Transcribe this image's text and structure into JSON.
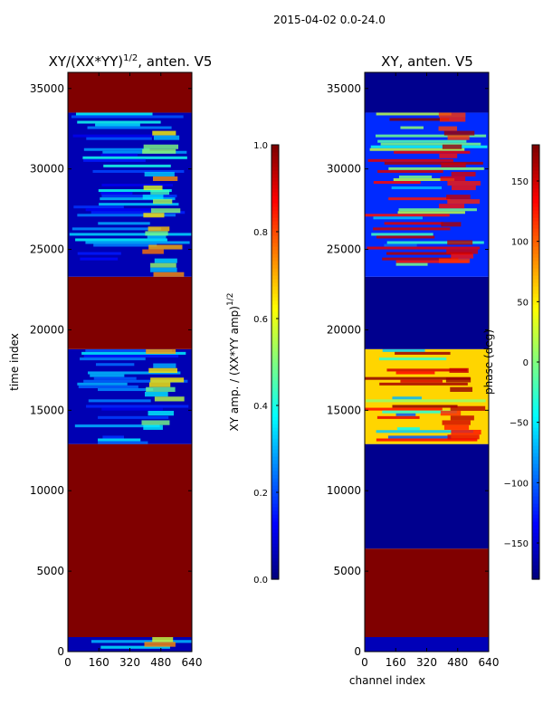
{
  "figure": {
    "suptitle": "2015-04-02 0.0-24.0"
  },
  "chart_data": [
    {
      "type": "heatmap",
      "title": "XY/(XX*YY)^1/2, anten. V5",
      "title_main": "XY/(XX*YY)",
      "title_sup": "1/2",
      "title_tail": ", anten. V5",
      "xlabel": "",
      "ylabel": "time index",
      "xlim": [
        0,
        640
      ],
      "ylim": [
        0,
        36000
      ],
      "xticks": [
        0,
        160,
        320,
        480,
        640
      ],
      "yticks": [
        0,
        5000,
        10000,
        15000,
        20000,
        25000,
        30000,
        35000
      ],
      "colorbar": {
        "label": "XY amp. / (XX*YY amp)^1/2",
        "label_main": "XY amp. / (XX*YY amp)",
        "label_sup": "1/2",
        "min": 0.0,
        "max": 1.0,
        "ticks": [
          "0.0",
          "0.2",
          "0.4",
          "0.6",
          "0.8",
          "1.0"
        ]
      },
      "regions": [
        {
          "y0": 0,
          "y1": 900,
          "x0": 0,
          "x1": 640,
          "value": 0.05
        },
        {
          "y0": 900,
          "y1": 12900,
          "x0": 0,
          "x1": 640,
          "value": 1.0
        },
        {
          "y0": 12900,
          "y1": 18800,
          "x0": 0,
          "x1": 640,
          "value": 0.05
        },
        {
          "y0": 18800,
          "y1": 23300,
          "x0": 0,
          "x1": 640,
          "value": 1.0
        },
        {
          "y0": 23300,
          "y1": 33500,
          "x0": 0,
          "x1": 640,
          "value": 0.05
        },
        {
          "y0": 33500,
          "y1": 36000,
          "x0": 0,
          "x1": 640,
          "value": 1.0
        }
      ]
    },
    {
      "type": "heatmap",
      "title": "XY, anten. V5",
      "xlabel": "channel index",
      "ylabel": "",
      "xlim": [
        0,
        640
      ],
      "ylim": [
        0,
        36000
      ],
      "xticks": [
        0,
        160,
        320,
        480,
        640
      ],
      "yticks": [
        0,
        5000,
        10000,
        15000,
        20000,
        25000,
        30000,
        35000
      ],
      "colorbar": {
        "label": "phase (deg)",
        "min": -180,
        "max": 180,
        "ticks": [
          "−150",
          "−100",
          "−50",
          "0",
          "50",
          "100",
          "150"
        ],
        "tick_values": [
          -150,
          -100,
          -50,
          0,
          50,
          100,
          150
        ]
      },
      "regions": [
        {
          "y0": 0,
          "y1": 900,
          "x0": 0,
          "x1": 640,
          "value": -160
        },
        {
          "y0": 900,
          "y1": 6400,
          "x0": 0,
          "x1": 640,
          "value": 180
        },
        {
          "y0": 6400,
          "y1": 12900,
          "x0": 0,
          "x1": 640,
          "value": -175
        },
        {
          "y0": 12900,
          "y1": 18800,
          "x0": 0,
          "x1": 640,
          "value": 60
        },
        {
          "y0": 18800,
          "y1": 23300,
          "x0": 0,
          "x1": 640,
          "value": -175
        },
        {
          "y0": 23300,
          "y1": 33500,
          "x0": 0,
          "x1": 640,
          "value": -120
        },
        {
          "y0": 33500,
          "y1": 36000,
          "x0": 0,
          "x1": 640,
          "value": -175
        }
      ]
    }
  ]
}
